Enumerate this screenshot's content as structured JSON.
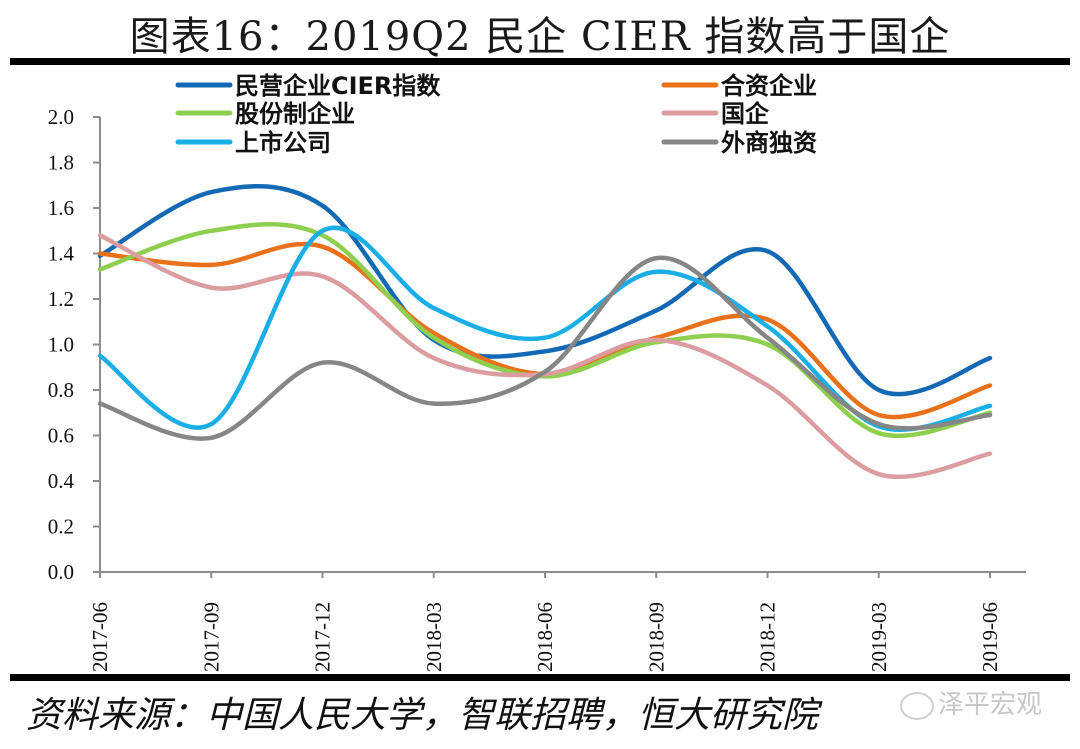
{
  "header": {
    "title": "图表16：2019Q2 民企 CIER 指数高于国企"
  },
  "footer": {
    "source": "资料来源：中国人民大学，智联招聘，恒大研究院",
    "watermark": "泽平宏观"
  },
  "chart_data": {
    "type": "line",
    "title": "图表16：2019Q2 民企 CIER 指数高于国企",
    "xlabel": "",
    "ylabel": "",
    "ylim": [
      0,
      2.0
    ],
    "yticks": [
      "0.0",
      "0.2",
      "0.4",
      "0.6",
      "0.8",
      "1.0",
      "1.2",
      "1.4",
      "1.6",
      "1.8",
      "2.0"
    ],
    "categories": [
      "2017-06",
      "2017-09",
      "2017-12",
      "2018-03",
      "2018-06",
      "2018-09",
      "2018-12",
      "2019-03",
      "2019-06"
    ],
    "smoothed": true,
    "grid": false,
    "legend_position": "top",
    "series": [
      {
        "name": "民营企业CIER指数",
        "color": "#1469b4",
        "values": [
          1.39,
          1.67,
          1.61,
          1.02,
          0.97,
          1.15,
          1.41,
          0.8,
          0.94
        ]
      },
      {
        "name": "合资企业",
        "color": "#e8711a",
        "values": [
          1.4,
          1.35,
          1.43,
          1.05,
          0.87,
          1.03,
          1.11,
          0.69,
          0.82
        ]
      },
      {
        "name": "股份制企业",
        "color": "#8fcf4f",
        "values": [
          1.33,
          1.5,
          1.48,
          1.03,
          0.86,
          1.01,
          1.0,
          0.61,
          0.7
        ]
      },
      {
        "name": "国企",
        "color": "#dc9da1",
        "values": [
          1.48,
          1.25,
          1.3,
          0.94,
          0.87,
          1.02,
          0.82,
          0.43,
          0.52
        ]
      },
      {
        "name": "上市公司",
        "color": "#19afe6",
        "values": [
          0.95,
          0.65,
          1.5,
          1.16,
          1.03,
          1.32,
          1.08,
          0.64,
          0.73
        ]
      },
      {
        "name": "外商独资",
        "color": "#868686",
        "values": [
          0.74,
          0.59,
          0.92,
          0.74,
          0.88,
          1.38,
          1.03,
          0.65,
          0.69
        ]
      }
    ]
  }
}
